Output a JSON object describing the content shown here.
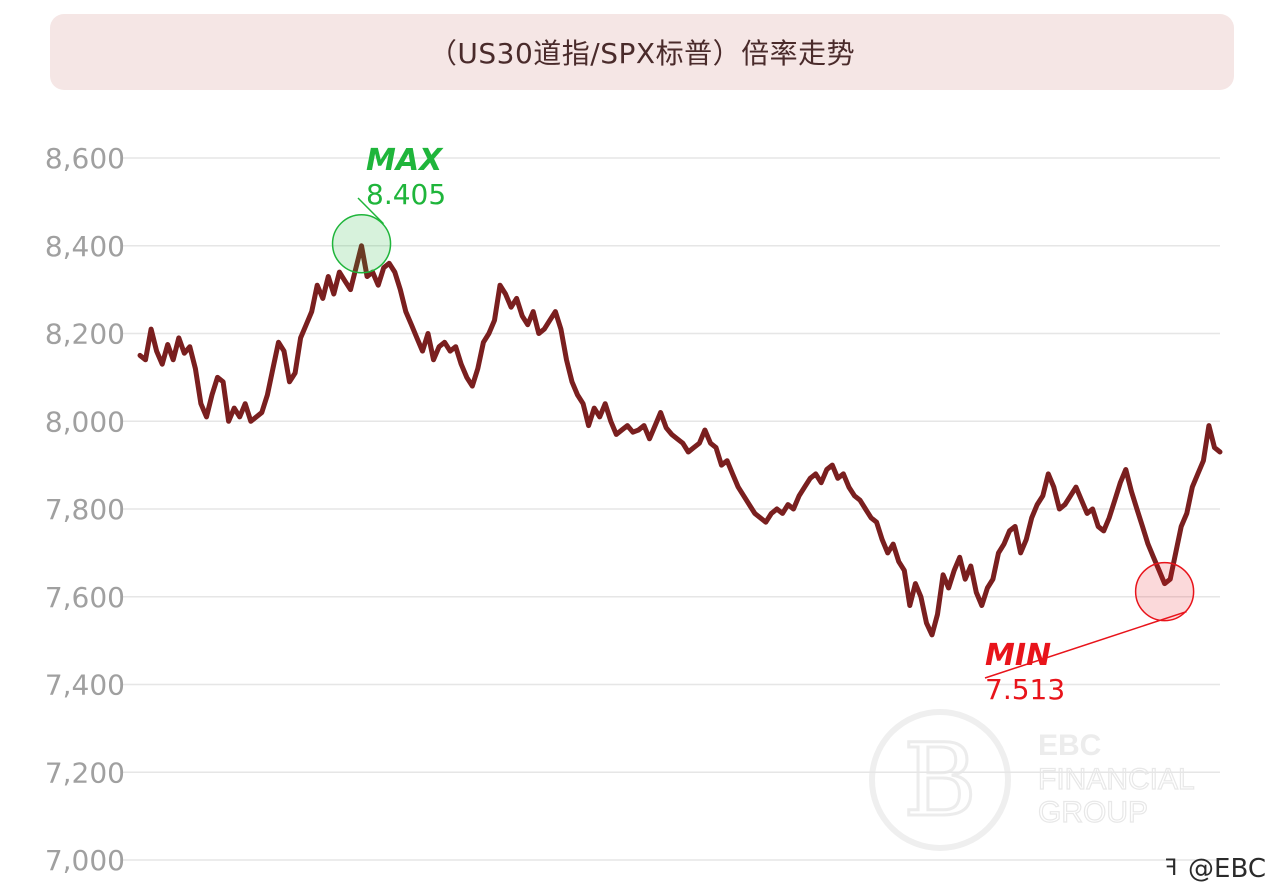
{
  "title": "（US30道指/SPX标普）倍率走势",
  "watermark": {
    "line1": "EBC",
    "line2": "FINANCIAL",
    "line3": "GROUP"
  },
  "social_tag": "@EBC",
  "colors": {
    "line": "#7a1f1f",
    "max": "#1fb53b",
    "min": "#e8141b",
    "grid": "#e6e6e6",
    "tick": "#a0a0a0",
    "title_bg": "#f5e6e5"
  },
  "chart_data": {
    "type": "line",
    "title": "（US30道指/SPX标普）倍率走势",
    "xlabel": "",
    "ylabel": "",
    "ylim": [
      7000,
      8600
    ],
    "yticks": [
      "7,000",
      "7,200",
      "7,400",
      "7,600",
      "7,800",
      "8,000",
      "8,200",
      "8,400",
      "8,600"
    ],
    "ytick_values": [
      7000,
      7200,
      7400,
      7600,
      7800,
      8000,
      8200,
      8400,
      8600
    ],
    "grid": true,
    "max_annotation": {
      "label": "MAX",
      "value_text": "8.405",
      "value": 8405,
      "index": 40
    },
    "min_annotation": {
      "label": "MIN",
      "value_text": "7.513",
      "value": 7513,
      "index": 185
    },
    "series": [
      {
        "values": [
          8150,
          8140,
          8210,
          8160,
          8130,
          8175,
          8140,
          8190,
          8155,
          8170,
          8120,
          8040,
          8010,
          8060,
          8100,
          8090,
          8000,
          8030,
          8010,
          8040,
          8000,
          8010,
          8020,
          8060,
          8120,
          8180,
          8160,
          8090,
          8110,
          8190,
          8220,
          8250,
          8310,
          8280,
          8330,
          8290,
          8340,
          8320,
          8300,
          8350,
          8400,
          8330,
          8340,
          8310,
          8350,
          8360,
          8340,
          8300,
          8250,
          8220,
          8190,
          8160,
          8200,
          8140,
          8170,
          8180,
          8160,
          8170,
          8130,
          8100,
          8080,
          8120,
          8180,
          8200,
          8230,
          8310,
          8290,
          8260,
          8280,
          8240,
          8220,
          8250,
          8200,
          8210,
          8230,
          8250,
          8210,
          8140,
          8090,
          8060,
          8040,
          7990,
          8030,
          8010,
          8040,
          8000,
          7970,
          7980,
          7990,
          7975,
          7980,
          7990,
          7960,
          7990,
          8020,
          7985,
          7970,
          7960,
          7950,
          7930,
          7940,
          7950,
          7980,
          7950,
          7940,
          7900,
          7910,
          7880,
          7850,
          7830,
          7810,
          7790,
          7780,
          7770,
          7790,
          7800,
          7790,
          7810,
          7800,
          7830,
          7850,
          7870,
          7880,
          7860,
          7890,
          7900,
          7870,
          7880,
          7850,
          7830,
          7820,
          7800,
          7780,
          7770,
          7730,
          7700,
          7720,
          7680,
          7660,
          7580,
          7630,
          7600,
          7540,
          7513,
          7560,
          7650,
          7620,
          7660,
          7690,
          7640,
          7670,
          7610,
          7580,
          7620,
          7640,
          7700,
          7720,
          7750,
          7760,
          7700,
          7730,
          7780,
          7810,
          7830,
          7880,
          7850,
          7800,
          7810,
          7830,
          7850,
          7820,
          7790,
          7800,
          7760,
          7750,
          7780,
          7820,
          7860,
          7890,
          7840,
          7800,
          7760,
          7720,
          7690,
          7660,
          7630,
          7640,
          7700,
          7760,
          7790,
          7850,
          7880,
          7910,
          7990,
          7940,
          7930
        ]
      }
    ]
  }
}
